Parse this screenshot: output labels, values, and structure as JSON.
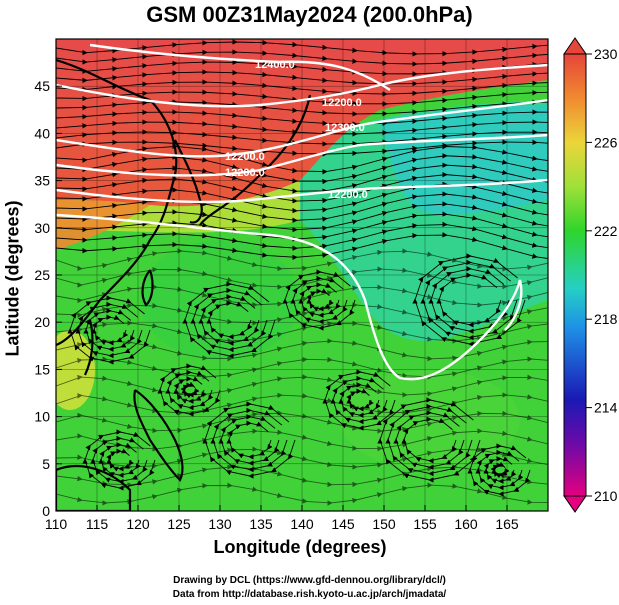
{
  "title": "GSM 00Z31May2024 (200.0hPa)",
  "xlabel": "Longitude (degrees)",
  "ylabel": "Latitude  (degrees)",
  "credits": {
    "line1": "Drawing by DCL (https://www.gfd-dennou.org/library/dcl/)",
    "line2": "Data from http://database.rish.kyoto-u.ac.jp/arch/jmadata/"
  },
  "map": {
    "lon_range": [
      110,
      170
    ],
    "lat_range": [
      0,
      50
    ],
    "x_ticks": [
      "110",
      "115",
      "120",
      "125",
      "130",
      "135",
      "140",
      "145",
      "150",
      "155",
      "160",
      "165"
    ],
    "y_ticks": [
      "0",
      "5",
      "10",
      "15",
      "20",
      "25",
      "30",
      "35",
      "40",
      "45"
    ],
    "field": "temperature (shaded) with streamlines and geopotential height contours",
    "contour_labels": [
      "12400.0",
      "12200.0",
      "12300.0",
      "12200.0",
      "12200.0",
      "12200.0",
      "12200.0"
    ]
  },
  "colorbar": {
    "labels": [
      "230",
      "226",
      "222",
      "218",
      "214",
      "210"
    ],
    "range": [
      210,
      230
    ],
    "colors": [
      "#e4007f",
      "#3b0fb0",
      "#1ea6e6",
      "#27d6b8",
      "#2fd52c",
      "#d8e23a",
      "#f0a534",
      "#e6453a"
    ]
  }
}
